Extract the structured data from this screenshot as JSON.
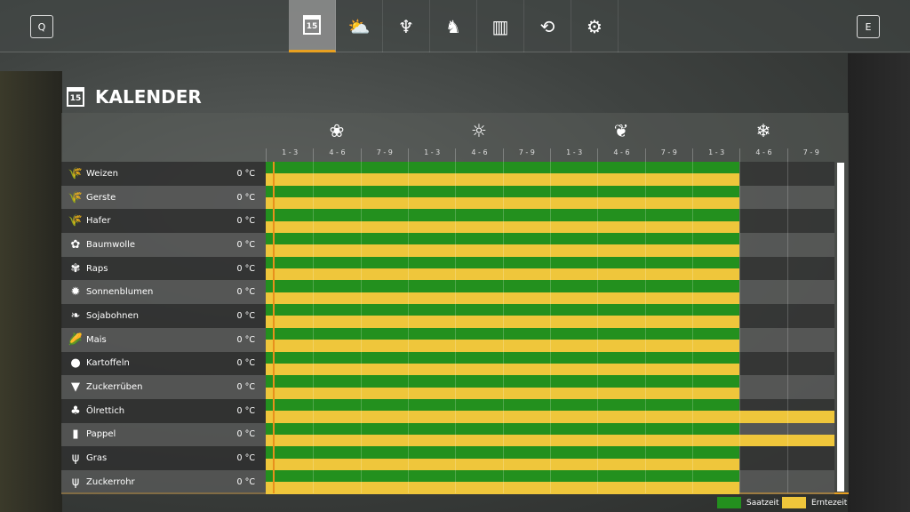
{
  "nav": {
    "left_key": "Q",
    "right_key": "E",
    "tabs": [
      {
        "icon": "calendar-icon",
        "label": "15",
        "active": true
      },
      {
        "icon": "weather-icon"
      },
      {
        "icon": "sprout-icon"
      },
      {
        "icon": "cow-icon"
      },
      {
        "icon": "stats-icon"
      },
      {
        "icon": "cycle-icon"
      },
      {
        "icon": "gears-icon"
      }
    ]
  },
  "page_title": "KALENDER",
  "calendar_day": "15",
  "seasons": [
    {
      "icon": "flower-icon",
      "glyph": "❀"
    },
    {
      "icon": "sun-icon",
      "glyph": "☼"
    },
    {
      "icon": "leaf-icon",
      "glyph": "❦"
    },
    {
      "icon": "snowflake-icon",
      "glyph": "❄"
    }
  ],
  "periods": [
    "1 - 3",
    "4 - 6",
    "7 - 9",
    "1 - 3",
    "4 - 6",
    "7 - 9",
    "1 - 3",
    "4 - 6",
    "7 - 9",
    "1 - 3",
    "4 - 6",
    "7 - 9"
  ],
  "colors": {
    "sow": "#23901e",
    "harvest": "#efc63b",
    "accent": "#e8a020"
  },
  "crops": [
    {
      "name": "Weizen",
      "temp": "0 °C",
      "sow_periods": [
        1,
        10
      ],
      "harvest_periods": [
        1,
        10
      ],
      "glyph": "🌾"
    },
    {
      "name": "Gerste",
      "temp": "0 °C",
      "sow_periods": [
        1,
        10
      ],
      "harvest_periods": [
        1,
        10
      ],
      "glyph": "🌾"
    },
    {
      "name": "Hafer",
      "temp": "0 °C",
      "sow_periods": [
        1,
        10
      ],
      "harvest_periods": [
        1,
        10
      ],
      "glyph": "🌾"
    },
    {
      "name": "Baumwolle",
      "temp": "0 °C",
      "sow_periods": [
        1,
        10
      ],
      "harvest_periods": [
        1,
        10
      ],
      "glyph": "✿"
    },
    {
      "name": "Raps",
      "temp": "0 °C",
      "sow_periods": [
        1,
        10
      ],
      "harvest_periods": [
        1,
        10
      ],
      "glyph": "✾"
    },
    {
      "name": "Sonnenblumen",
      "temp": "0 °C",
      "sow_periods": [
        1,
        10
      ],
      "harvest_periods": [
        1,
        10
      ],
      "glyph": "✹"
    },
    {
      "name": "Sojabohnen",
      "temp": "0 °C",
      "sow_periods": [
        1,
        10
      ],
      "harvest_periods": [
        1,
        10
      ],
      "glyph": "❧"
    },
    {
      "name": "Mais",
      "temp": "0 °C",
      "sow_periods": [
        1,
        10
      ],
      "harvest_periods": [
        1,
        10
      ],
      "glyph": "🌽"
    },
    {
      "name": "Kartoffeln",
      "temp": "0 °C",
      "sow_periods": [
        1,
        10
      ],
      "harvest_periods": [
        1,
        10
      ],
      "glyph": "●"
    },
    {
      "name": "Zuckerrüben",
      "temp": "0 °C",
      "sow_periods": [
        1,
        10
      ],
      "harvest_periods": [
        1,
        10
      ],
      "glyph": "▼"
    },
    {
      "name": "Ölrettich",
      "temp": "0 °C",
      "sow_periods": [
        1,
        10
      ],
      "harvest_periods": [
        1,
        12
      ],
      "glyph": "♣"
    },
    {
      "name": "Pappel",
      "temp": "0 °C",
      "sow_periods": [
        1,
        10
      ],
      "harvest_periods": [
        1,
        12
      ],
      "glyph": "▮"
    },
    {
      "name": "Gras",
      "temp": "0 °C",
      "sow_periods": [
        1,
        10
      ],
      "harvest_periods": [
        1,
        10
      ],
      "glyph": "ψ"
    },
    {
      "name": "Zuckerrohr",
      "temp": "0 °C",
      "sow_periods": [
        1,
        10
      ],
      "harvest_periods": [
        1,
        10
      ],
      "glyph": "ψ"
    }
  ],
  "legend": {
    "sow": "Saatzeit",
    "harvest": "Erntezeit"
  }
}
